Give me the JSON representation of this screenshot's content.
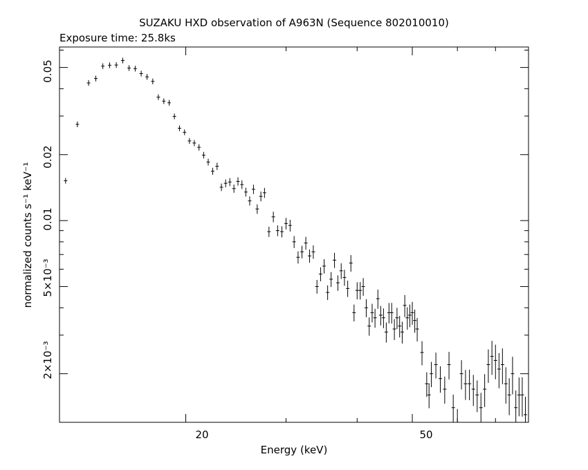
{
  "chart_data": {
    "type": "scatter",
    "title": "SUZAKU HXD observation of A963N (Sequence 802010010)",
    "subtitle": "Exposure time: 25.8ks",
    "xlabel": "Energy (keV)",
    "ylabel": "normalized counts s⁻¹ keV⁻¹",
    "x_scale": "log",
    "y_scale": "log",
    "xlim": [
      12.0,
      80.0
    ],
    "ylim": [
      0.0012,
      0.062
    ],
    "x_tick_labels": [
      "20",
      "50"
    ],
    "y_tick_labels": [
      "0.05",
      "0.02",
      "0.01",
      "5×10⁻³",
      "2×10⁻³"
    ],
    "grid": false,
    "legend": "none",
    "color": "#000000",
    "points": [
      [
        12.3,
        0.0152
      ],
      [
        12.9,
        0.0275
      ],
      [
        13.5,
        0.0425
      ],
      [
        13.9,
        0.0445
      ],
      [
        14.3,
        0.0507
      ],
      [
        14.7,
        0.0512
      ],
      [
        15.1,
        0.0513
      ],
      [
        15.5,
        0.0538
      ],
      [
        15.9,
        0.0497
      ],
      [
        16.3,
        0.0494
      ],
      [
        16.7,
        0.0469
      ],
      [
        17.1,
        0.0453
      ],
      [
        17.5,
        0.0432
      ],
      [
        17.9,
        0.0366
      ],
      [
        18.3,
        0.0351
      ],
      [
        18.7,
        0.0345
      ],
      [
        19.1,
        0.0299
      ],
      [
        19.5,
        0.0264
      ],
      [
        19.9,
        0.0253
      ],
      [
        20.3,
        0.0231
      ],
      [
        20.7,
        0.0226
      ],
      [
        21.1,
        0.0216
      ],
      [
        21.5,
        0.0199
      ],
      [
        21.9,
        0.0185
      ],
      [
        22.3,
        0.0168
      ],
      [
        22.7,
        0.0177
      ],
      [
        23.1,
        0.0142
      ],
      [
        23.5,
        0.0148
      ],
      [
        23.9,
        0.015
      ],
      [
        24.3,
        0.014
      ],
      [
        24.7,
        0.0151
      ],
      [
        25.1,
        0.0146
      ],
      [
        25.5,
        0.0135
      ],
      [
        25.9,
        0.0123
      ],
      [
        26.3,
        0.0139
      ],
      [
        26.7,
        0.0113
      ],
      [
        27.1,
        0.0129
      ],
      [
        27.5,
        0.0134
      ],
      [
        28.0,
        0.0089
      ],
      [
        28.5,
        0.0104
      ],
      [
        29.0,
        0.009
      ],
      [
        29.5,
        0.0089
      ],
      [
        30.0,
        0.0097
      ],
      [
        30.5,
        0.0095
      ],
      [
        31.0,
        0.008
      ],
      [
        31.5,
        0.0068
      ],
      [
        32.0,
        0.0072
      ],
      [
        32.5,
        0.0079
      ],
      [
        33.0,
        0.0069
      ],
      [
        33.5,
        0.0072
      ],
      [
        34.0,
        0.005
      ],
      [
        34.5,
        0.0057
      ],
      [
        35.0,
        0.0062
      ],
      [
        35.5,
        0.0047
      ],
      [
        36.0,
        0.0054
      ],
      [
        36.5,
        0.0066
      ],
      [
        37.0,
        0.0052
      ],
      [
        37.5,
        0.0059
      ],
      [
        38.0,
        0.0055
      ],
      [
        38.5,
        0.0049
      ],
      [
        39.0,
        0.0064
      ],
      [
        39.5,
        0.0038
      ],
      [
        40.0,
        0.0048
      ],
      [
        40.5,
        0.0048
      ],
      [
        41.0,
        0.005
      ],
      [
        41.5,
        0.004
      ],
      [
        42.0,
        0.0033
      ],
      [
        42.5,
        0.0038
      ],
      [
        43.0,
        0.0036
      ],
      [
        43.5,
        0.0044
      ],
      [
        44.0,
        0.0037
      ],
      [
        44.5,
        0.0036
      ],
      [
        45.0,
        0.0031
      ],
      [
        45.5,
        0.0038
      ],
      [
        46.0,
        0.0038
      ],
      [
        46.5,
        0.0032
      ],
      [
        47.0,
        0.0036
      ],
      [
        47.5,
        0.0033
      ],
      [
        48.0,
        0.0031
      ],
      [
        48.5,
        0.0041
      ],
      [
        49.0,
        0.0036
      ],
      [
        49.5,
        0.0037
      ],
      [
        50.0,
        0.0038
      ],
      [
        50.5,
        0.0035
      ],
      [
        51.0,
        0.0032
      ],
      [
        52.0,
        0.0025
      ],
      [
        53.0,
        0.0018
      ],
      [
        53.5,
        0.0016
      ],
      [
        54.0,
        0.002
      ],
      [
        55.0,
        0.0022
      ],
      [
        56.0,
        0.0019
      ],
      [
        57.0,
        0.0017
      ],
      [
        58.0,
        0.0022
      ],
      [
        59.0,
        0.0014
      ],
      [
        60.0,
        0.0012
      ],
      [
        61.0,
        0.002
      ],
      [
        62.0,
        0.0018
      ],
      [
        63.0,
        0.0018
      ],
      [
        64.0,
        0.0017
      ],
      [
        65.0,
        0.0016
      ],
      [
        66.0,
        0.0014
      ],
      [
        67.0,
        0.0017
      ],
      [
        68.0,
        0.0022
      ],
      [
        69.0,
        0.0024
      ],
      [
        70.0,
        0.0023
      ],
      [
        71.0,
        0.0021
      ],
      [
        72.0,
        0.0022
      ],
      [
        73.0,
        0.0018
      ],
      [
        74.0,
        0.0016
      ],
      [
        75.0,
        0.002
      ],
      [
        76.0,
        0.0014
      ],
      [
        77.0,
        0.0016
      ],
      [
        78.0,
        0.0016
      ],
      [
        79.0,
        0.0013
      ]
    ]
  }
}
